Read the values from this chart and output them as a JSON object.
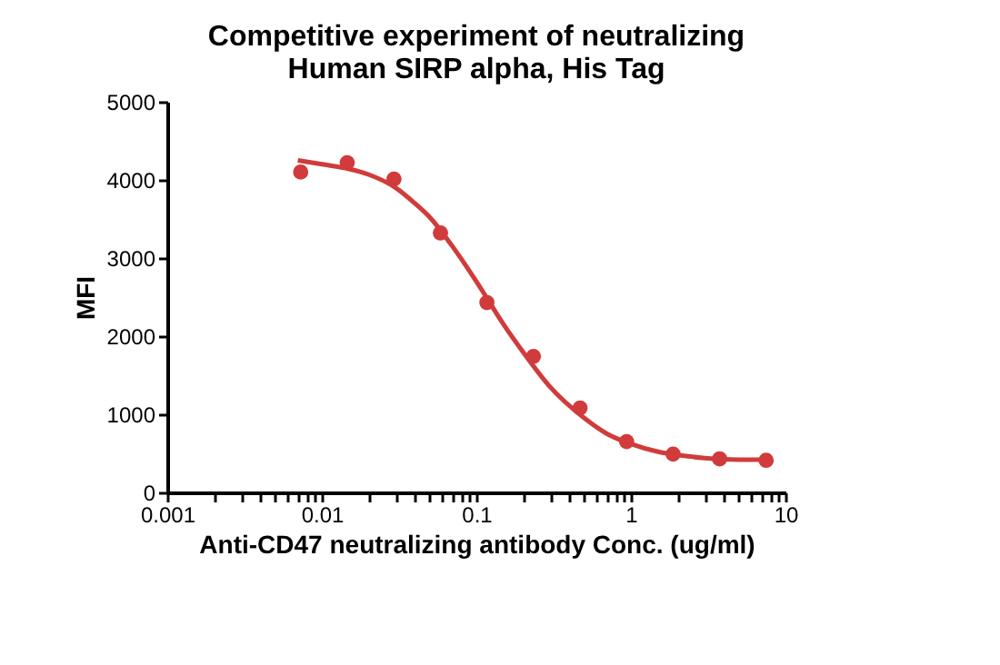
{
  "chart_data": {
    "type": "scatter",
    "title": "Competitive experiment of neutralizing\nHuman SIRP alpha, His Tag",
    "xlabel": "Anti-CD47 neutralizing antibody Conc. (ug/ml)",
    "ylabel": "MFI",
    "log": "x",
    "grid": false,
    "xlim": [
      0.001,
      10
    ],
    "ylim": [
      0,
      5000
    ],
    "xticks": [
      0.001,
      {
        "value": 0.002,
        "label": null
      },
      {
        "value": 0.003,
        "label": null
      },
      {
        "value": 0.004,
        "label": null
      },
      {
        "value": 0.005,
        "label": null
      },
      {
        "value": 0.006,
        "label": null
      },
      {
        "value": 0.007,
        "label": null
      },
      {
        "value": 0.008,
        "label": null
      },
      {
        "value": 0.009,
        "label": null
      },
      0.01,
      {
        "value": 0.02,
        "label": null
      },
      {
        "value": 0.03,
        "label": null
      },
      {
        "value": 0.04,
        "label": null
      },
      {
        "value": 0.05,
        "label": null
      },
      {
        "value": 0.06,
        "label": null
      },
      {
        "value": 0.07,
        "label": null
      },
      {
        "value": 0.08,
        "label": null
      },
      {
        "value": 0.09,
        "label": null
      },
      0.1,
      {
        "value": 0.2,
        "label": null
      },
      {
        "value": 0.3,
        "label": null
      },
      {
        "value": 0.4,
        "label": null
      },
      {
        "value": 0.5,
        "label": null
      },
      {
        "value": 0.6,
        "label": null
      },
      {
        "value": 0.7,
        "label": null
      },
      {
        "value": 0.8,
        "label": null
      },
      {
        "value": 0.9,
        "label": null
      },
      1,
      {
        "value": 2,
        "label": null
      },
      {
        "value": 3,
        "label": null
      },
      {
        "value": 4,
        "label": null
      },
      {
        "value": 5,
        "label": null
      },
      {
        "value": 6,
        "label": null
      },
      {
        "value": 7,
        "label": null
      },
      {
        "value": 8,
        "label": null
      },
      {
        "value": 9,
        "label": null
      },
      10
    ],
    "yticks": [
      0,
      1000,
      2000,
      3000,
      4000,
      5000
    ],
    "series": [
      {
        "color": "#d13b3b",
        "marker": "circle",
        "x": [
          0.0073,
          0.0146,
          0.0293,
          0.0586,
          0.117,
          0.234,
          0.469,
          0.938,
          1.875,
          3.75,
          7.5
        ],
        "values": [
          4100,
          4220,
          4010,
          3320,
          2430,
          1740,
          1080,
          650,
          490,
          430,
          410
        ]
      },
      {
        "type": "line",
        "color": "#d13b3b",
        "line_style": "solid",
        "x": [
          0.007,
          0.01,
          0.015,
          0.02,
          0.03,
          0.04,
          0.05,
          0.07,
          0.1,
          0.15,
          0.2,
          0.3,
          0.5,
          0.7,
          1,
          1.5,
          2,
          3,
          5,
          7.5
        ],
        "values": [
          4250,
          4200,
          4140,
          4070,
          3900,
          3700,
          3520,
          3150,
          2700,
          2150,
          1800,
          1350,
          950,
          750,
          620,
          520,
          480,
          440,
          420,
          420
        ]
      }
    ]
  }
}
